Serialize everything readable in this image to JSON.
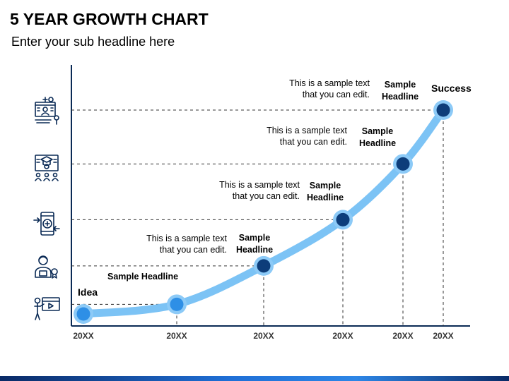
{
  "header": {
    "title": "5 YEAR GROWTH CHART",
    "subtitle": "Enter your sub headline here"
  },
  "labels": {
    "start": "Idea",
    "end": "Success"
  },
  "annotations": [
    {
      "headline": "Sample Headline"
    },
    {
      "text_line1": "This is a sample text",
      "text_line2": "that you can edit.",
      "headline_line1": "Sample",
      "headline_line2": "Headline"
    },
    {
      "text_line1": "This is a sample text",
      "text_line2": "that you can edit.",
      "headline_line1": "Sample",
      "headline_line2": "Headline"
    },
    {
      "text_line1": "This is a sample text",
      "text_line2": "that you can edit.",
      "headline_line1": "Sample",
      "headline_line2": "Headline"
    },
    {
      "text_line1": "This is a sample text",
      "text_line2": "that you can edit.",
      "headline_line1": "Sample",
      "headline_line2": "Headline"
    }
  ],
  "icons": [
    "teacher-board-icon",
    "presenter-icon",
    "mobile-recycle-icon",
    "graduation-video-icon",
    "online-meeting-icon"
  ],
  "colors": {
    "curve": "#7cc3f5",
    "point_fill": "#0d3d7a",
    "point_fill_start": "#2e8fe6",
    "point_ring": "#8ccaf7",
    "dash": "#333333",
    "axis": "#0a2a55"
  },
  "chart_data": {
    "type": "line",
    "title": "5 YEAR GROWTH CHART",
    "x": [
      "20XX",
      "20XX",
      "20XX",
      "20XX",
      "20XX",
      "20XX"
    ],
    "values": [
      0,
      1,
      5,
      9.8,
      15.6,
      21.2
    ],
    "ylim": [
      0,
      24
    ],
    "grid": false
  }
}
